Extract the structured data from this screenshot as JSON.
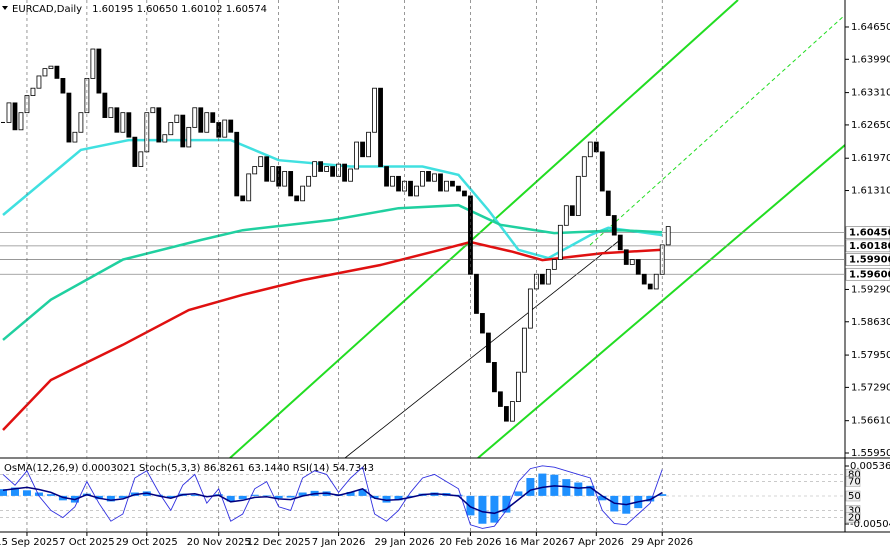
{
  "chart_data": [
    {
      "type": "candlestick",
      "title": "EURCAD,Daily",
      "subtitle": "1.60195 1.60650 1.60102 1.60574",
      "values": [
        1.627,
        1.631,
        1.6255,
        1.629,
        1.6325,
        1.634,
        1.6365,
        1.638,
        1.6385,
        1.636,
        1.633,
        1.623,
        1.625,
        1.629,
        1.636,
        1.642,
        1.633,
        1.628,
        1.63,
        1.625,
        1.629,
        1.624,
        1.618,
        1.621,
        1.629,
        1.63,
        1.623,
        1.6245,
        1.627,
        1.6285,
        1.622,
        1.626,
        1.63,
        1.625,
        1.629,
        1.627,
        1.624,
        1.6275,
        1.625,
        1.612,
        1.611,
        1.6165,
        1.618,
        1.62,
        1.615,
        1.618,
        1.614,
        1.617,
        1.612,
        1.611,
        1.614,
        1.616,
        1.619,
        1.617,
        1.618,
        1.616,
        1.6185,
        1.615,
        1.6175,
        1.623,
        1.62,
        1.625,
        1.634,
        1.618,
        1.614,
        1.616,
        1.613,
        1.615,
        1.612,
        1.614,
        1.617,
        1.615,
        1.6165,
        1.613,
        1.615,
        1.614,
        1.613,
        1.612,
        1.596,
        1.588,
        1.584,
        1.578,
        1.572,
        1.569,
        1.566,
        1.57,
        1.576,
        1.585,
        1.593,
        1.596,
        1.594,
        1.597,
        1.599,
        1.606,
        1.61,
        1.608,
        1.616,
        1.62,
        1.623,
        1.621,
        1.613,
        1.608,
        1.604,
        1.601,
        1.598,
        1.599,
        1.596,
        1.594,
        1.593,
        1.596,
        1.602,
        1.60574
      ],
      "moving_averages": [
        {
          "color": "#40e0e0",
          "x": [
            0,
            13,
            21,
            38,
            46,
            58,
            70,
            76,
            81,
            86,
            91,
            98,
            101,
            110
          ],
          "values": [
            1.6081,
            1.6214,
            1.6234,
            1.6234,
            1.6193,
            1.618,
            1.618,
            1.6163,
            1.6091,
            1.601,
            1.5993,
            1.604,
            1.6055,
            1.604
          ]
        },
        {
          "color": "#20d0a0",
          "x": [
            0,
            8,
            20,
            33,
            40,
            55,
            66,
            76,
            83,
            92,
            103,
            110
          ],
          "values": [
            1.5826,
            1.5908,
            1.599,
            1.603,
            1.605,
            1.6071,
            1.6095,
            1.6101,
            1.6061,
            1.6044,
            1.605,
            1.6046
          ]
        },
        {
          "color": "#e01010",
          "x": [
            0,
            8,
            20,
            31,
            40,
            50,
            63,
            73,
            78,
            85,
            90,
            100,
            110
          ],
          "values": [
            1.5642,
            1.5744,
            1.5816,
            1.5887,
            1.5918,
            1.5948,
            1.5979,
            1.601,
            1.6026,
            1.6006,
            1.5989,
            1.6003,
            1.601
          ]
        }
      ],
      "xlim": [
        -0.5,
        140.5
      ],
      "xticks": [
        {
          "value": 4,
          "label": "15 Sep 2025"
        },
        {
          "value": 14,
          "label": "7 Oct 2025"
        },
        {
          "value": 24,
          "label": "29 Oct 2025"
        },
        {
          "value": 36,
          "label": "20 Nov 2025"
        },
        {
          "value": 46,
          "label": "12 Dec 2025"
        },
        {
          "value": 56,
          "label": "7 Jan 2026"
        },
        {
          "value": 67,
          "label": "29 Jan 2026"
        },
        {
          "value": 78,
          "label": "20 Feb 2026"
        },
        {
          "value": 89,
          "label": "16 Mar 2026"
        },
        {
          "value": 99,
          "label": "7 Apr 2026"
        },
        {
          "value": 110,
          "label": "29 Apr 2026"
        }
      ],
      "ylim": [
        1.55848,
        1.65201
      ],
      "yticks": [
        {
          "value": 1.6465,
          "label": "1.64650"
        },
        {
          "value": 1.6399,
          "label": "1.63990"
        },
        {
          "value": 1.6331,
          "label": "1.63310"
        },
        {
          "value": 1.6265,
          "label": "1.62650"
        },
        {
          "value": 1.6197,
          "label": "1.61970"
        },
        {
          "value": 1.6131,
          "label": "1.61310"
        },
        {
          "value": 1.5929,
          "label": "1.59290"
        },
        {
          "value": 1.5863,
          "label": "1.58630"
        },
        {
          "value": 1.5795,
          "label": "1.57950"
        },
        {
          "value": 1.5729,
          "label": "1.57290"
        },
        {
          "value": 1.5661,
          "label": "1.56610"
        },
        {
          "value": 1.5595,
          "label": "1.55950"
        }
      ],
      "levels": [
        {
          "value": 1.6045,
          "label": "1.60450"
        },
        {
          "value": 1.6018,
          "label": "1.60180"
        },
        {
          "value": 1.599,
          "label": "1.59900"
        },
        {
          "value": 1.596,
          "label": "1.59600"
        }
      ],
      "grid": true
    },
    {
      "type": "indicator",
      "title": "OsMA(12,26,9) 0.0003021 Stoch(5,3,3) 86.8261 63.1440 RSI(14) 54.7343",
      "values": [
        0.0012,
        0.0015,
        0.001,
        0.0006,
        0.0003,
        -0.0008,
        -0.0012,
        0.0004,
        -0.0006,
        -0.001,
        -0.0004,
        0.0006,
        0.0008,
        0.0002,
        -0.0003,
        0.0004,
        0.0002,
        -0.0002,
        0.0003,
        -0.001,
        -0.0006,
        0.0002,
        0.0001,
        -0.0004,
        -0.0003,
        0.0006,
        0.0009,
        0.0008,
        0.0003,
        0.0007,
        0.0012,
        -0.0004,
        -0.0012,
        -0.0008,
        -0.0002,
        0.0004,
        0.0006,
        0.0005,
        0.0002,
        -0.0035,
        -0.005,
        -0.0048,
        -0.003,
        0.0008,
        0.0032,
        0.004,
        0.0038,
        0.003,
        0.0024,
        0.0018,
        -0.0008,
        -0.0028,
        -0.0032,
        -0.0022,
        -0.001,
        0.0003021
      ],
      "color": "#1e90ff",
      "xlim": [
        -0.25,
        70.25
      ],
      "ylim": [
        -0.006484,
        0.006438
      ],
      "yticks": [
        0.0053614,
        -0.0050484
      ],
      "y2lim": [
        0,
        100
      ],
      "y2ticks": [
        80,
        70,
        50,
        30,
        20
      ],
      "series": [
        {
          "color": "#3030e0",
          "axis": "y2",
          "values": [
            80,
            65,
            85,
            50,
            30,
            20,
            35,
            70,
            40,
            15,
            25,
            75,
            85,
            55,
            30,
            65,
            80,
            40,
            60,
            15,
            25,
            60,
            70,
            35,
            30,
            75,
            85,
            80,
            55,
            75,
            90,
            25,
            15,
            30,
            55,
            75,
            80,
            70,
            60,
            10,
            5,
            8,
            30,
            70,
            88,
            92,
            90,
            85,
            80,
            75,
            30,
            12,
            10,
            25,
            40,
            86.8261
          ]
        },
        {
          "color": "#000080",
          "axis": "y2",
          "values": [
            58,
            60,
            62,
            59,
            55,
            48,
            45,
            52,
            47,
            44,
            46,
            52,
            54,
            50,
            47,
            52,
            53,
            49,
            51,
            42,
            44,
            48,
            49,
            46,
            45,
            50,
            53,
            54,
            51,
            55,
            60,
            47,
            44,
            45,
            48,
            52,
            53,
            52,
            50,
            35,
            28,
            26,
            32,
            45,
            58,
            62,
            64,
            63,
            61,
            62,
            50,
            40,
            38,
            42,
            45,
            54.7343
          ]
        }
      ]
    }
  ]
}
